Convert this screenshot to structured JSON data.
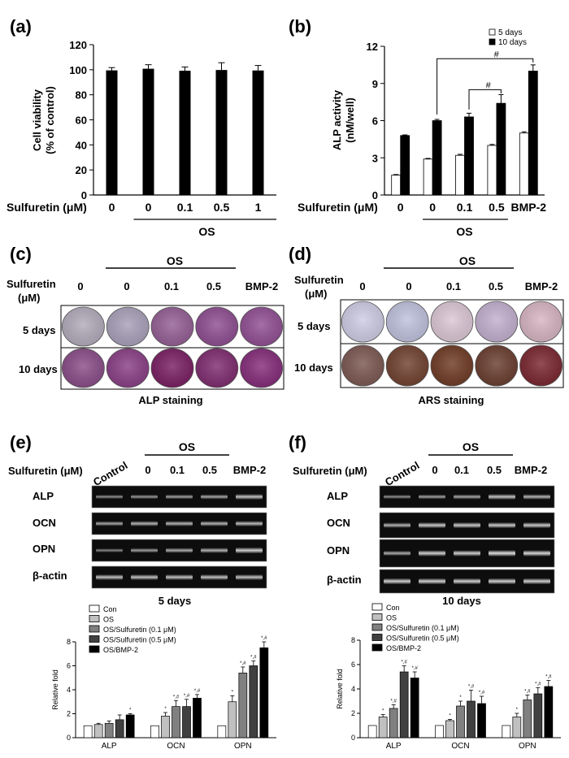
{
  "panels": {
    "a": {
      "label": "(a)"
    },
    "b": {
      "label": "(b)"
    },
    "c": {
      "label": "(c)",
      "caption": "ALP staining"
    },
    "d": {
      "label": "(d)",
      "caption": "ARS staining"
    },
    "e": {
      "label": "(e)",
      "time": "5 days"
    },
    "f": {
      "label": "(f)",
      "time": "10 days"
    }
  },
  "common": {
    "sulfuretin_um": "Sulfuretin (μM)",
    "sulfuretin": "Sulfuretin",
    "um": "(μM)",
    "os": "OS",
    "bmp2": "BMP-2",
    "control": "Control",
    "doses": [
      "0",
      "0",
      "0.1",
      "0.5"
    ],
    "days5": "5 days",
    "days10": "10 days",
    "genes": [
      "ALP",
      "OCN",
      "OPN",
      "β-actin"
    ]
  },
  "chart_data": [
    {
      "id": "a",
      "type": "bar",
      "ylabel": "Cell viability\n(% of control)",
      "ylim": [
        0,
        120
      ],
      "yticks": [
        0,
        20,
        40,
        60,
        80,
        100,
        120
      ],
      "categories": [
        "0",
        "0",
        "0.1",
        "0.5",
        "1"
      ],
      "xlabel_prefix": "Sulfuretin (μM)",
      "group_label": "OS",
      "values": [
        99.5,
        100.8,
        99.2,
        99.8,
        99.4
      ],
      "errors": [
        2.2,
        3.2,
        3.0,
        5.8,
        4.0
      ],
      "color": "#000000"
    },
    {
      "id": "b",
      "type": "bar",
      "ylabel": "ALP activity\n(nM/well)",
      "ylim": [
        0,
        12
      ],
      "yticks": [
        0,
        3,
        6,
        9,
        12
      ],
      "categories": [
        "0",
        "0",
        "0.1",
        "0.5",
        "BMP-2"
      ],
      "xlabel_prefix": "Sulfuretin (μM)",
      "group_label": "OS",
      "series": [
        {
          "name": "5 days",
          "values": [
            1.6,
            2.9,
            3.2,
            4.0,
            5.0
          ],
          "errors": [
            0.05,
            0.05,
            0.08,
            0.08,
            0.1
          ],
          "color": "#ffffff"
        },
        {
          "name": "10 days",
          "values": [
            4.8,
            6.0,
            6.3,
            7.4,
            10.0
          ],
          "errors": [
            0.05,
            0.1,
            0.3,
            0.7,
            0.5
          ],
          "color": "#000000"
        }
      ],
      "annotations": [
        "#",
        "#"
      ]
    },
    {
      "id": "e",
      "type": "bar",
      "ylabel": "Relative fold",
      "ylim": [
        0,
        8
      ],
      "yticks": [
        0,
        2,
        4,
        6,
        8
      ],
      "categories": [
        "ALP",
        "OCN",
        "OPN"
      ],
      "series": [
        {
          "name": "Con",
          "values": [
            1.0,
            1.0,
            1.0
          ],
          "errors": [
            0,
            0,
            0
          ],
          "marks": [
            "",
            "",
            ""
          ],
          "color": "#ffffff"
        },
        {
          "name": "OS",
          "values": [
            1.1,
            1.8,
            3.0
          ],
          "errors": [
            0.1,
            0.3,
            0.5
          ],
          "marks": [
            "",
            "*",
            "*"
          ],
          "color": "#c0c0c0"
        },
        {
          "name": "OS/Sulfuretin (0.1 μM)",
          "values": [
            1.2,
            2.6,
            5.4
          ],
          "errors": [
            0.2,
            0.5,
            0.5
          ],
          "marks": [
            "",
            "*,#",
            "*,#"
          ],
          "color": "#808080"
        },
        {
          "name": "OS/Sulfuretin (0.5 μM)",
          "values": [
            1.5,
            2.6,
            6.0
          ],
          "errors": [
            0.4,
            0.6,
            0.4
          ],
          "marks": [
            "",
            "*,#",
            "*,#"
          ],
          "color": "#404040"
        },
        {
          "name": "OS/BMP-2",
          "values": [
            1.9,
            3.3,
            7.5
          ],
          "errors": [
            0.1,
            0.3,
            0.5
          ],
          "marks": [
            "*",
            "*,#",
            "*,#"
          ],
          "color": "#000000"
        }
      ]
    },
    {
      "id": "f",
      "type": "bar",
      "ylabel": "Relative fold",
      "ylim": [
        0,
        8
      ],
      "yticks": [
        0,
        2,
        4,
        6,
        8
      ],
      "categories": [
        "ALP",
        "OCN",
        "OPN"
      ],
      "series": [
        {
          "name": "Con",
          "values": [
            1.0,
            1.0,
            1.0
          ],
          "errors": [
            0,
            0,
            0
          ],
          "marks": [
            "",
            "",
            ""
          ],
          "color": "#ffffff"
        },
        {
          "name": "OS",
          "values": [
            1.7,
            1.4,
            1.7
          ],
          "errors": [
            0.2,
            0.1,
            0.3
          ],
          "marks": [
            "*",
            "*",
            "*"
          ],
          "color": "#c0c0c0"
        },
        {
          "name": "OS/Sulfuretin (0.1 μM)",
          "values": [
            2.4,
            2.6,
            3.1
          ],
          "errors": [
            0.3,
            0.4,
            0.4
          ],
          "marks": [
            "*,#",
            "*",
            "*,#"
          ],
          "color": "#808080"
        },
        {
          "name": "OS/Sulfuretin (0.5 μM)",
          "values": [
            5.4,
            3.0,
            3.6
          ],
          "errors": [
            0.5,
            0.9,
            0.5
          ],
          "marks": [
            "*,#",
            "*,#",
            "*,#"
          ],
          "color": "#404040"
        },
        {
          "name": "OS/BMP-2",
          "values": [
            4.9,
            2.8,
            4.2
          ],
          "errors": [
            0.5,
            0.6,
            0.5
          ],
          "marks": [
            "*,#",
            "*,#",
            "*,#"
          ],
          "color": "#000000"
        }
      ]
    }
  ],
  "staining": {
    "c": {
      "row5": [
        "#b3abbb",
        "#a9a1ba",
        "#955f95",
        "#8f4e92",
        "#914f94"
      ],
      "row10": [
        "#8a4d88",
        "#8a3f86",
        "#7a1f63",
        "#7f2c70",
        "#852c7a"
      ]
    },
    "d": {
      "row5": [
        "#cfcde5",
        "#c0c2de",
        "#dcc8d6",
        "#c3b0cf",
        "#d8b5c3"
      ],
      "row10": [
        "#7c5852",
        "#714230",
        "#6f3b25",
        "#6a3e2f",
        "#7a2630"
      ]
    }
  }
}
